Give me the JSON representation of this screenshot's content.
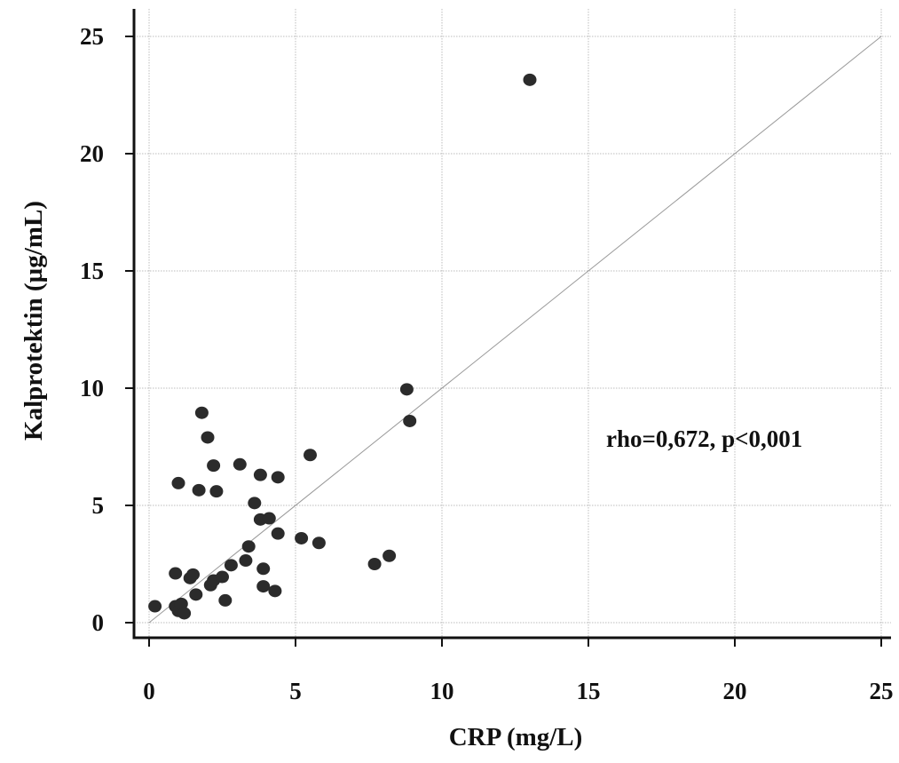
{
  "chart_data": {
    "type": "scatter",
    "title": "",
    "xlabel": "CRP (mg/L)",
    "ylabel": "Kalprotektin (µg/mL)",
    "xlim": [
      0,
      25
    ],
    "ylim": [
      0,
      25
    ],
    "x_ticks": [
      0,
      5,
      10,
      15,
      20,
      25
    ],
    "y_ticks": [
      0,
      5,
      10,
      15,
      20,
      25
    ],
    "grid": true,
    "reference_line": {
      "from": [
        0,
        0
      ],
      "to": [
        25,
        25
      ]
    },
    "annotation": "rho=0,672, p<0,001",
    "colors": {
      "points": "#2b2b2b",
      "grid": "#bdbdbd",
      "axis": "#111111",
      "line": "#9a9a9a"
    },
    "points": [
      {
        "x": 0.2,
        "y": 0.7
      },
      {
        "x": 0.9,
        "y": 0.7
      },
      {
        "x": 1.0,
        "y": 0.5
      },
      {
        "x": 1.1,
        "y": 0.8
      },
      {
        "x": 1.2,
        "y": 0.4
      },
      {
        "x": 0.9,
        "y": 2.1
      },
      {
        "x": 1.0,
        "y": 5.95
      },
      {
        "x": 1.4,
        "y": 1.9
      },
      {
        "x": 1.5,
        "y": 2.05
      },
      {
        "x": 1.6,
        "y": 1.2
      },
      {
        "x": 1.7,
        "y": 5.65
      },
      {
        "x": 1.8,
        "y": 8.95
      },
      {
        "x": 2.0,
        "y": 7.9
      },
      {
        "x": 2.1,
        "y": 1.6
      },
      {
        "x": 2.2,
        "y": 1.8
      },
      {
        "x": 2.2,
        "y": 6.7
      },
      {
        "x": 2.3,
        "y": 5.6
      },
      {
        "x": 2.5,
        "y": 1.95
      },
      {
        "x": 2.6,
        "y": 0.95
      },
      {
        "x": 2.8,
        "y": 2.45
      },
      {
        "x": 3.1,
        "y": 6.75
      },
      {
        "x": 3.3,
        "y": 2.65
      },
      {
        "x": 3.4,
        "y": 3.25
      },
      {
        "x": 3.6,
        "y": 5.1
      },
      {
        "x": 3.8,
        "y": 6.3
      },
      {
        "x": 3.8,
        "y": 4.4
      },
      {
        "x": 3.9,
        "y": 2.3
      },
      {
        "x": 3.9,
        "y": 1.55
      },
      {
        "x": 4.1,
        "y": 4.45
      },
      {
        "x": 4.3,
        "y": 1.35
      },
      {
        "x": 4.4,
        "y": 6.2
      },
      {
        "x": 4.4,
        "y": 3.8
      },
      {
        "x": 5.2,
        "y": 3.6
      },
      {
        "x": 5.5,
        "y": 7.15
      },
      {
        "x": 5.8,
        "y": 3.4
      },
      {
        "x": 7.7,
        "y": 2.5
      },
      {
        "x": 8.2,
        "y": 2.85
      },
      {
        "x": 8.8,
        "y": 9.95
      },
      {
        "x": 8.9,
        "y": 8.6
      },
      {
        "x": 13.0,
        "y": 23.15
      }
    ]
  }
}
